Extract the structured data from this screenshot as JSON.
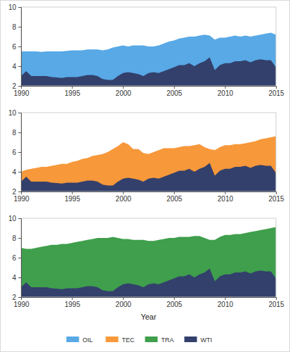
{
  "chart_data": [
    {
      "type": "area",
      "x": [
        1990,
        1990.5,
        1991,
        1991.5,
        1992,
        1992.5,
        1993,
        1993.5,
        1994,
        1994.5,
        1995,
        1995.5,
        1996,
        1996.5,
        1997,
        1997.5,
        1998,
        1998.5,
        1999,
        1999.5,
        2000,
        2000.5,
        2001,
        2001.5,
        2002,
        2002.5,
        2003,
        2003.5,
        2004,
        2004.5,
        2005,
        2005.5,
        2006,
        2006.5,
        2007,
        2007.5,
        2008,
        2008.5,
        2009,
        2009.5,
        2010,
        2010.5,
        2011,
        2011.5,
        2012,
        2012.5,
        2013,
        2013.5,
        2014,
        2014.5,
        2015
      ],
      "series": [
        {
          "name": "OIL",
          "color": "#58a9e6",
          "values": [
            5.5,
            5.5,
            5.5,
            5.5,
            5.45,
            5.5,
            5.5,
            5.5,
            5.5,
            5.55,
            5.6,
            5.6,
            5.6,
            5.7,
            5.7,
            5.7,
            5.6,
            5.7,
            5.9,
            6.0,
            6.1,
            6.0,
            6.1,
            6.1,
            6.1,
            6.0,
            6.0,
            6.1,
            6.3,
            6.5,
            6.6,
            6.8,
            6.9,
            7.0,
            7.0,
            7.1,
            7.2,
            7.1,
            6.7,
            6.9,
            6.9,
            7.0,
            7.1,
            7.0,
            7.1,
            7.0,
            7.1,
            7.2,
            7.3,
            7.4,
            7.2
          ]
        },
        {
          "name": "WTI",
          "color": "#33406c",
          "values": [
            3.0,
            3.5,
            3.0,
            3.0,
            3.0,
            3.0,
            2.9,
            2.85,
            2.8,
            2.9,
            2.9,
            2.9,
            3.0,
            3.1,
            3.1,
            3.0,
            2.7,
            2.6,
            2.6,
            3.0,
            3.3,
            3.4,
            3.3,
            3.2,
            3.0,
            3.3,
            3.4,
            3.3,
            3.5,
            3.7,
            3.9,
            4.1,
            4.1,
            4.3,
            4.0,
            4.3,
            4.5,
            4.9,
            3.6,
            4.1,
            4.3,
            4.3,
            4.5,
            4.5,
            4.6,
            4.4,
            4.6,
            4.7,
            4.6,
            4.6,
            3.9
          ]
        }
      ],
      "xlim": [
        1990,
        2015
      ],
      "ylim": [
        2,
        10
      ],
      "xticks": [
        1990,
        1995,
        2000,
        2005,
        2010,
        2015
      ],
      "yticks": [
        2,
        4,
        6,
        8,
        10
      ]
    },
    {
      "type": "area",
      "x": [
        1990,
        1990.5,
        1991,
        1991.5,
        1992,
        1992.5,
        1993,
        1993.5,
        1994,
        1994.5,
        1995,
        1995.5,
        1996,
        1996.5,
        1997,
        1997.5,
        1998,
        1998.5,
        1999,
        1999.5,
        2000,
        2000.5,
        2001,
        2001.5,
        2002,
        2002.5,
        2003,
        2003.5,
        2004,
        2004.5,
        2005,
        2005.5,
        2006,
        2006.5,
        2007,
        2007.5,
        2008,
        2008.5,
        2009,
        2009.5,
        2010,
        2010.5,
        2011,
        2011.5,
        2012,
        2012.5,
        2013,
        2013.5,
        2014,
        2014.5,
        2015
      ],
      "series": [
        {
          "name": "TEC",
          "color": "#f7983a",
          "values": [
            4.0,
            4.2,
            4.3,
            4.4,
            4.5,
            4.5,
            4.6,
            4.7,
            4.8,
            4.8,
            5.0,
            5.1,
            5.3,
            5.4,
            5.6,
            5.7,
            5.8,
            6.0,
            6.3,
            6.6,
            7.0,
            6.8,
            6.3,
            6.3,
            5.9,
            5.8,
            6.0,
            6.2,
            6.4,
            6.4,
            6.4,
            6.5,
            6.6,
            6.6,
            6.7,
            6.8,
            6.5,
            6.3,
            6.2,
            6.5,
            6.7,
            6.7,
            6.8,
            6.8,
            6.9,
            7.0,
            7.1,
            7.3,
            7.4,
            7.5,
            7.6
          ]
        },
        {
          "name": "WTI",
          "color": "#33406c",
          "values": [
            3.0,
            3.5,
            3.0,
            3.0,
            3.0,
            3.0,
            2.9,
            2.85,
            2.8,
            2.9,
            2.9,
            2.9,
            3.0,
            3.1,
            3.1,
            3.0,
            2.7,
            2.6,
            2.6,
            3.0,
            3.3,
            3.4,
            3.3,
            3.2,
            3.0,
            3.3,
            3.4,
            3.3,
            3.5,
            3.7,
            3.9,
            4.1,
            4.1,
            4.3,
            4.0,
            4.3,
            4.5,
            4.9,
            3.6,
            4.1,
            4.3,
            4.3,
            4.5,
            4.5,
            4.6,
            4.4,
            4.6,
            4.7,
            4.6,
            4.6,
            3.9
          ]
        }
      ],
      "xlim": [
        1990,
        2015
      ],
      "ylim": [
        2,
        10
      ],
      "xticks": [
        1990,
        1995,
        2000,
        2005,
        2010,
        2015
      ],
      "yticks": [
        2,
        4,
        6,
        8,
        10
      ]
    },
    {
      "type": "area",
      "xlabel": "Year",
      "x": [
        1990,
        1990.5,
        1991,
        1991.5,
        1992,
        1992.5,
        1993,
        1993.5,
        1994,
        1994.5,
        1995,
        1995.5,
        1996,
        1996.5,
        1997,
        1997.5,
        1998,
        1998.5,
        1999,
        1999.5,
        2000,
        2000.5,
        2001,
        2001.5,
        2002,
        2002.5,
        2003,
        2003.5,
        2004,
        2004.5,
        2005,
        2005.5,
        2006,
        2006.5,
        2007,
        2007.5,
        2008,
        2008.5,
        2009,
        2009.5,
        2010,
        2010.5,
        2011,
        2011.5,
        2012,
        2012.5,
        2013,
        2013.5,
        2014,
        2014.5,
        2015
      ],
      "series": [
        {
          "name": "TRA",
          "color": "#3f9f4c",
          "values": [
            7.0,
            6.9,
            6.9,
            7.0,
            7.1,
            7.2,
            7.3,
            7.3,
            7.4,
            7.4,
            7.5,
            7.6,
            7.7,
            7.8,
            7.9,
            8.0,
            8.0,
            8.0,
            8.1,
            8.0,
            7.9,
            7.9,
            7.8,
            7.8,
            7.8,
            7.7,
            7.7,
            7.8,
            7.9,
            8.0,
            8.0,
            8.1,
            8.1,
            8.1,
            8.2,
            8.2,
            8.0,
            7.8,
            7.8,
            8.1,
            8.3,
            8.3,
            8.4,
            8.4,
            8.5,
            8.6,
            8.7,
            8.8,
            8.9,
            9.0,
            9.1
          ]
        },
        {
          "name": "WTI",
          "color": "#33406c",
          "values": [
            3.0,
            3.5,
            3.0,
            3.0,
            3.0,
            3.0,
            2.9,
            2.85,
            2.8,
            2.9,
            2.9,
            2.9,
            3.0,
            3.1,
            3.1,
            3.0,
            2.7,
            2.6,
            2.6,
            3.0,
            3.3,
            3.4,
            3.3,
            3.2,
            3.0,
            3.3,
            3.4,
            3.3,
            3.5,
            3.7,
            3.9,
            4.1,
            4.1,
            4.3,
            4.0,
            4.3,
            4.5,
            4.9,
            3.6,
            4.1,
            4.3,
            4.3,
            4.5,
            4.5,
            4.6,
            4.4,
            4.6,
            4.7,
            4.6,
            4.6,
            3.9
          ]
        }
      ],
      "xlim": [
        1990,
        2015
      ],
      "ylim": [
        2,
        10
      ],
      "xticks": [
        1990,
        1995,
        2000,
        2005,
        2010,
        2015
      ],
      "yticks": [
        2,
        4,
        6,
        8,
        10
      ],
      "legend": "bottom"
    }
  ]
}
